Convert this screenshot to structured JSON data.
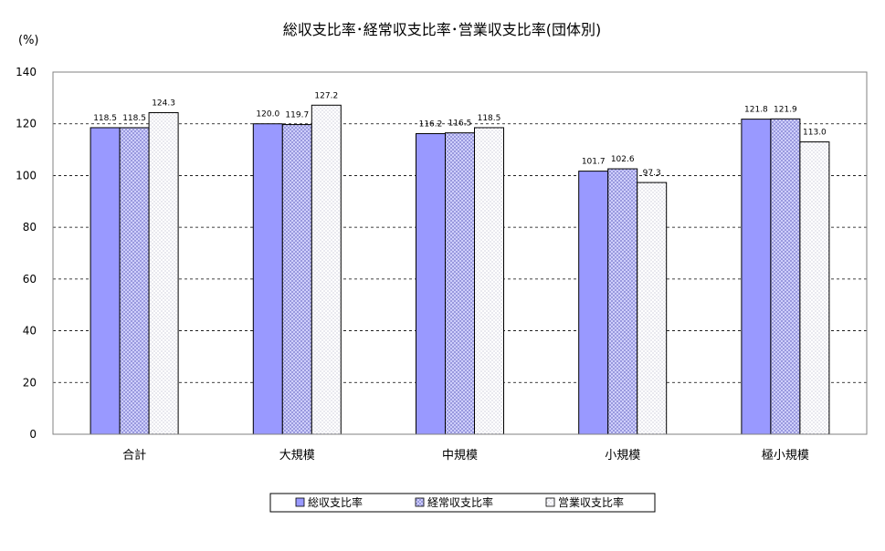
{
  "chart_data": {
    "type": "bar",
    "title": "総収支比率･経常収支比率･営業収支比率(団体別)",
    "ylabel": "(%)",
    "xlabel": "",
    "ylim": [
      0,
      140
    ],
    "yticks": [
      0,
      20,
      40,
      60,
      80,
      100,
      120,
      140
    ],
    "grid": true,
    "legend_position": "bottom",
    "categories": [
      "合計",
      "大規模",
      "中規模",
      "小規模",
      "極小規模"
    ],
    "series": [
      {
        "name": "総収支比率",
        "values": [
          118.5,
          120.0,
          116.2,
          101.7,
          121.8
        ],
        "color": "#9999ff",
        "pattern": "solid"
      },
      {
        "name": "経常収支比率",
        "values": [
          118.5,
          119.7,
          116.5,
          102.6,
          121.9
        ],
        "color": "#c8c8ff",
        "pattern": "crosshatch"
      },
      {
        "name": "営業収支比率",
        "values": [
          124.3,
          127.2,
          118.5,
          97.3,
          113.0
        ],
        "color": "#ffffff",
        "pattern": "dots"
      }
    ],
    "value_labels": [
      [
        "118.5",
        "120.0",
        "116.2",
        "101.7",
        "121.8"
      ],
      [
        "118.5",
        "119.7",
        "116.5",
        "102.6",
        "121.9"
      ],
      [
        "124.3",
        "127.2",
        "118.5",
        "97.3",
        "113.0"
      ]
    ]
  }
}
